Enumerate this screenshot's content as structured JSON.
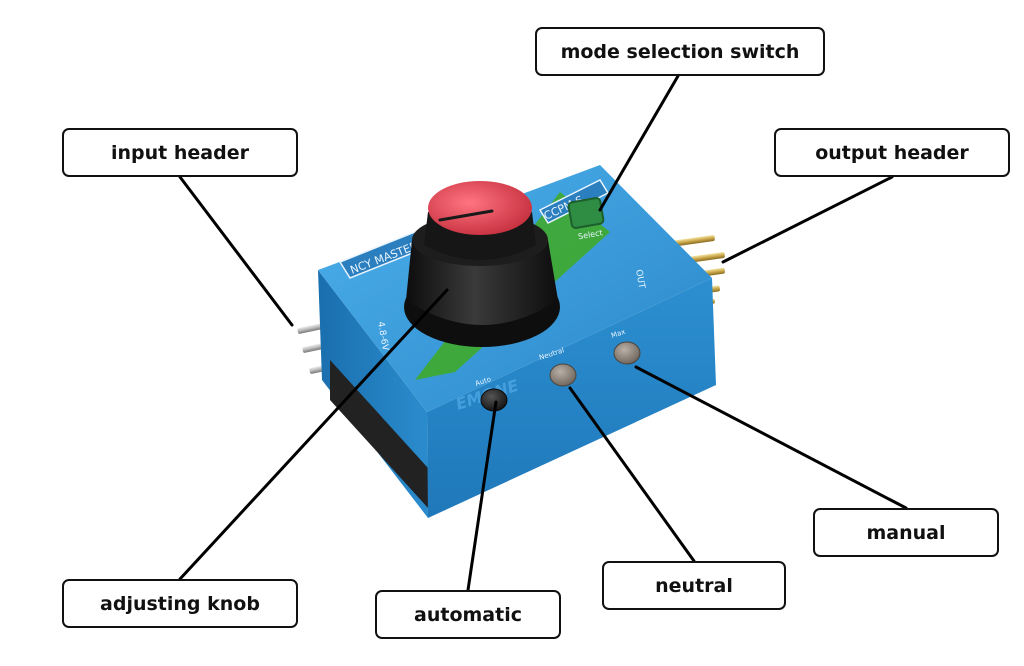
{
  "labels": {
    "mode_selection_switch": "mode selection switch",
    "input_header": "input header",
    "output_header": "output header",
    "adjusting_knob": "adjusting knob",
    "automatic": "automatic",
    "neutral": "neutral",
    "manual": "manual"
  },
  "device_print": {
    "top_text": "CCPM S",
    "side_text": "NCY MASTER",
    "brand": "EMONE",
    "out_label": "OUT",
    "in_label": "4.8-6V",
    "auto_led": "Auto",
    "neutral_led": "Neutral",
    "max_led": "Max",
    "select_label": "Select"
  },
  "colors": {
    "device_blue": "#2f93d4",
    "knob_red": "#e0414f",
    "knob_black": "#1a1a1a",
    "stripe_green": "#3fa935"
  }
}
